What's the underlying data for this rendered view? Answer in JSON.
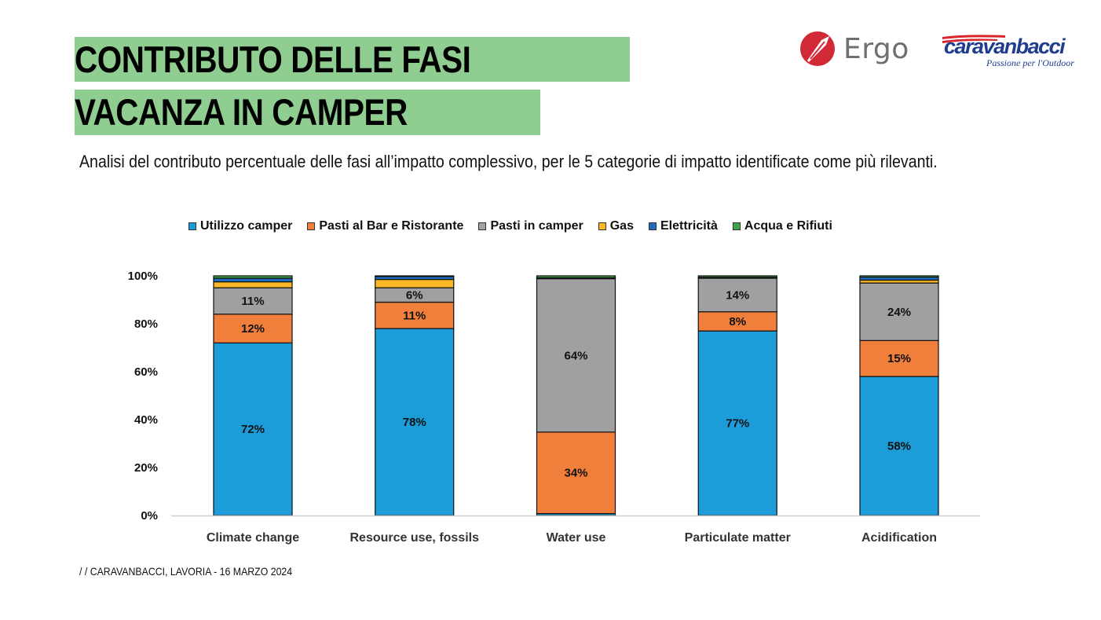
{
  "title": {
    "line1": "CONTRIBUTO DELLE FASI",
    "line2": "VACANZA IN CAMPER"
  },
  "subtitle": "Analisi del contributo percentuale delle fasi all’impatto complessivo, per le 5 categorie di impatto identificate come più rilevanti.",
  "logos": {
    "ergo": "Ergo",
    "caravanbacci": "caravanbacci",
    "caravanbacci_tagline": "Passione per l'Outdoor"
  },
  "footer": "/ /  CARAVANBACCI, LAVORIA - 16 MARZO 2024",
  "colors": {
    "title_band": "#8fce90"
  },
  "chart_data": {
    "type": "bar",
    "stacked": true,
    "categories": [
      "Climate change",
      "Resource use, fossils",
      "Water use",
      "Particulate matter",
      "Acidification"
    ],
    "ylim": [
      0,
      100
    ],
    "yticks": [
      0,
      20,
      40,
      60,
      80,
      100
    ],
    "ytick_labels": [
      "0%",
      "20%",
      "40%",
      "60%",
      "80%",
      "100%"
    ],
    "legend_position": "top",
    "series": [
      {
        "name": "Utilizzo camper",
        "color": "#1c9cd8",
        "values": [
          72,
          78,
          0.8,
          77,
          58
        ],
        "labels": [
          "72%",
          "78%",
          "",
          "77%",
          "58%"
        ]
      },
      {
        "name": "Pasti al Bar e Ristorante",
        "color": "#f07f3c",
        "values": [
          12,
          11,
          34,
          8,
          15
        ],
        "labels": [
          "12%",
          "11%",
          "34%",
          "8%",
          "15%"
        ]
      },
      {
        "name": "Pasti in camper",
        "color": "#9ea0a2",
        "values": [
          11,
          6,
          64,
          14,
          24
        ],
        "labels": [
          "11%",
          "6%",
          "64%",
          "14%",
          "24%"
        ]
      },
      {
        "name": "Gas",
        "color": "#fbb626",
        "values": [
          2.5,
          3.5,
          0.2,
          0.2,
          1.2
        ],
        "labels": [
          "",
          "",
          "",
          "",
          ""
        ]
      },
      {
        "name": "Elettricità",
        "color": "#1f6cc0",
        "values": [
          1.5,
          1.2,
          0.2,
          0.2,
          1.2
        ],
        "labels": [
          "",
          "",
          "",
          "",
          ""
        ]
      },
      {
        "name": "Acqua e Rifiuti",
        "color": "#3da84a",
        "values": [
          1,
          0.3,
          0.8,
          0.6,
          0.6
        ],
        "labels": [
          "",
          "",
          "",
          "",
          ""
        ]
      }
    ]
  }
}
